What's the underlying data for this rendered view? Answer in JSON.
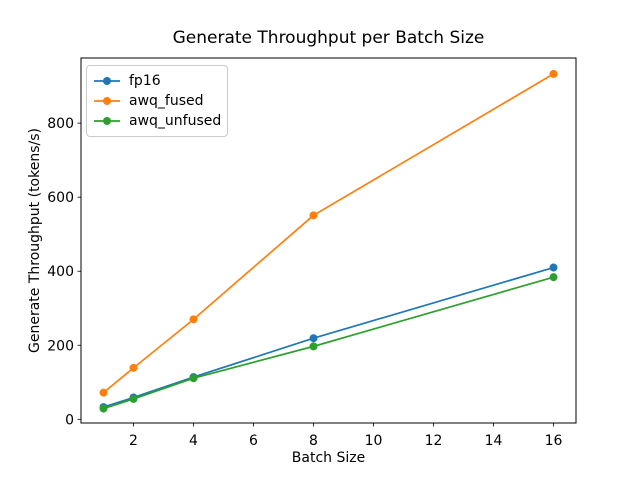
{
  "chart_data": {
    "type": "line",
    "title": "Generate Throughput per Batch Size",
    "xlabel": "Batch Size",
    "ylabel": "Generate Throughput (tokens/s)",
    "x": [
      1,
      2,
      4,
      8,
      16
    ],
    "series": [
      {
        "name": "fp16",
        "color": "#1f77b4",
        "values": [
          33,
          59,
          114,
          219,
          410
        ]
      },
      {
        "name": "awq_fused",
        "color": "#ff7f0e",
        "values": [
          72,
          139,
          270,
          551,
          933
        ]
      },
      {
        "name": "awq_unfused",
        "color": "#2ca02c",
        "values": [
          29,
          55,
          111,
          197,
          384
        ]
      }
    ],
    "x_ticks": [
      2,
      4,
      6,
      8,
      10,
      12,
      14,
      16
    ],
    "y_ticks": [
      0,
      200,
      400,
      600,
      800
    ],
    "xlim": [
      0.25,
      16.75
    ],
    "ylim": [
      -10,
      976
    ],
    "legend_position": "upper left",
    "grid": false,
    "marker": "o",
    "background_color": "#ffffff",
    "spine_color": "#000000"
  }
}
